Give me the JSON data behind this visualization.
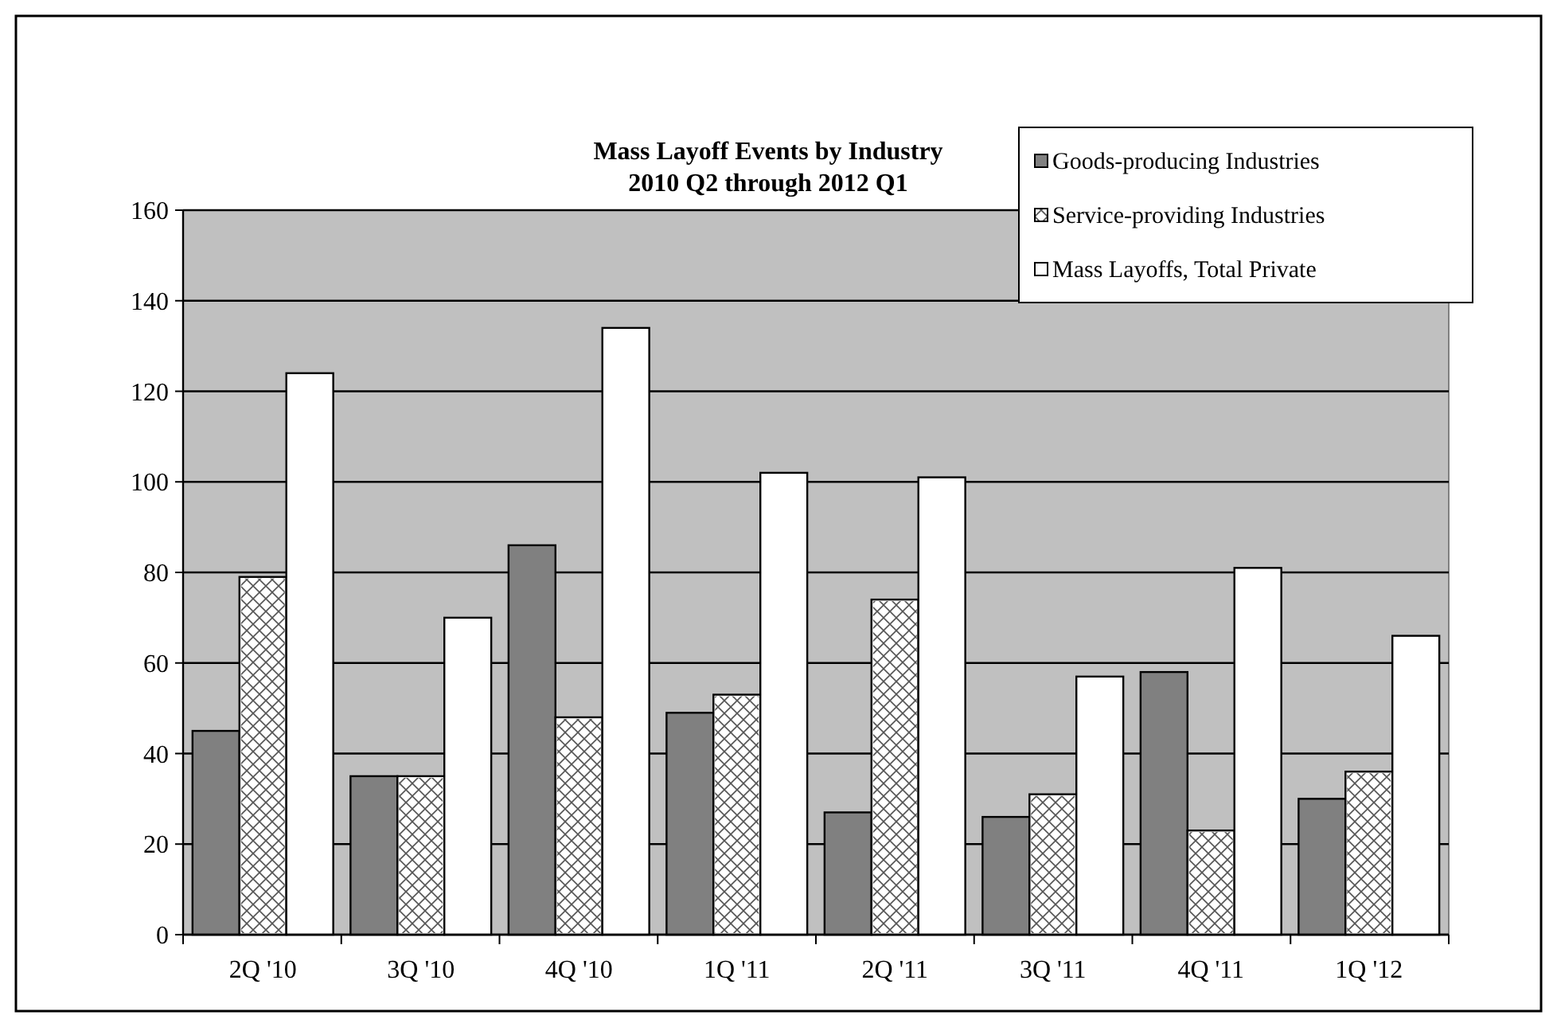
{
  "chart_data": {
    "type": "bar",
    "title": "Mass Layoff Events by Industry\n2010 Q2 through 2012 Q1",
    "categories": [
      "2Q '10",
      "3Q '10",
      "4Q '10",
      "1Q '11",
      "2Q '11",
      "3Q '11",
      "4Q '11",
      "1Q '12"
    ],
    "series": [
      {
        "name": "Goods-producing Industries",
        "color": "#808080",
        "values": [
          45,
          35,
          86,
          49,
          27,
          26,
          58,
          30
        ]
      },
      {
        "name": "Service-providing Industries",
        "color": "#ffffff",
        "values": [
          79,
          35,
          48,
          53,
          74,
          31,
          23,
          36
        ]
      },
      {
        "name": "Mass Layoffs, Total Private",
        "color": "#ffffff",
        "values": [
          124,
          70,
          134,
          102,
          101,
          57,
          81,
          66
        ]
      }
    ],
    "ylim": [
      0,
      160
    ],
    "yticks": [
      0,
      20,
      40,
      60,
      80,
      100,
      120,
      140,
      160
    ],
    "grid": "y",
    "legend": "top right"
  }
}
